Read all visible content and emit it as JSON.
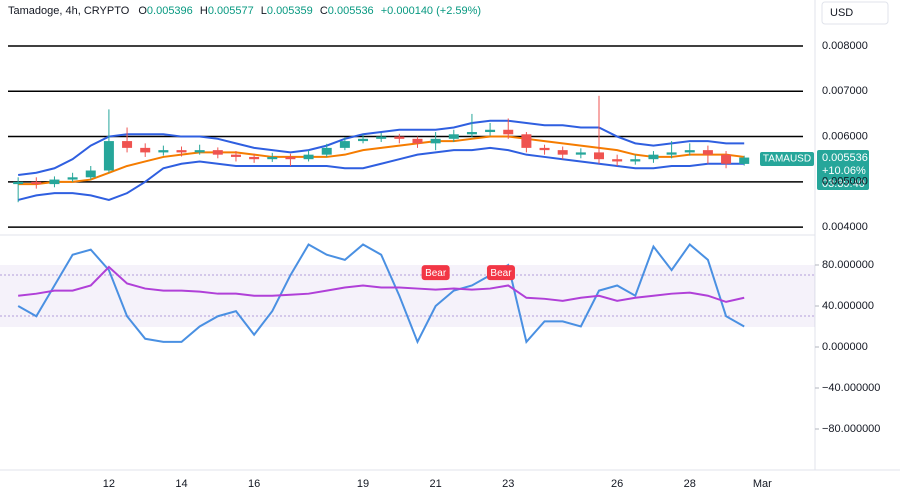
{
  "header": {
    "symbol": "Tamadoge, 4h, CRYPTO",
    "open_label": "O",
    "open": "0.005396",
    "high_label": "H",
    "high": "0.005577",
    "low_label": "L",
    "low": "0.005359",
    "close_label": "C",
    "close": "0.005536",
    "change": "+0.000140 (+2.59%)",
    "currency": "USD"
  },
  "price_tag": {
    "symbol": "TAMAUSD",
    "price": "0.005536",
    "change": "+10.06%",
    "countdown": "03:39:40"
  },
  "chart_data": [
    {
      "type": "candlestick",
      "x": [
        9.5,
        10,
        10.5,
        11,
        11.5,
        12,
        12.5,
        13,
        13.5,
        14,
        14.5,
        15,
        15.5,
        16,
        16.5,
        17,
        17.5,
        18,
        18.5,
        19,
        19.5,
        20,
        20.5,
        21,
        21.5,
        22,
        22.5,
        23,
        23.5,
        24,
        24.5,
        25,
        25.5,
        26,
        26.5,
        27,
        27.5,
        28,
        28.5,
        29,
        29.5
      ],
      "open": [
        0.00495,
        0.005,
        0.00495,
        0.00505,
        0.0051,
        0.00525,
        0.0059,
        0.00575,
        0.00565,
        0.0057,
        0.00565,
        0.0057,
        0.0056,
        0.00555,
        0.0055,
        0.00555,
        0.0055,
        0.0056,
        0.00575,
        0.0059,
        0.00595,
        0.006,
        0.00595,
        0.00585,
        0.00595,
        0.00605,
        0.0061,
        0.00615,
        0.00605,
        0.00575,
        0.0057,
        0.0056,
        0.00565,
        0.0055,
        0.00545,
        0.0055,
        0.0056,
        0.00565,
        0.0057,
        0.0056,
        0.005396
      ],
      "high": [
        0.0051,
        0.0051,
        0.00512,
        0.0052,
        0.00535,
        0.0066,
        0.0062,
        0.00585,
        0.0058,
        0.00578,
        0.00582,
        0.00576,
        0.00568,
        0.00562,
        0.00564,
        0.00562,
        0.0057,
        0.00584,
        0.00598,
        0.00605,
        0.00608,
        0.00606,
        0.006,
        0.0061,
        0.00615,
        0.0065,
        0.0063,
        0.0064,
        0.0061,
        0.00582,
        0.00578,
        0.00574,
        0.0069,
        0.0056,
        0.0056,
        0.00568,
        0.0059,
        0.00585,
        0.0058,
        0.00568,
        0.005577
      ],
      "low": [
        0.00455,
        0.00485,
        0.00488,
        0.005,
        0.00505,
        0.0052,
        0.00565,
        0.00555,
        0.00558,
        0.00556,
        0.0056,
        0.00552,
        0.00545,
        0.00542,
        0.00544,
        0.00535,
        0.00545,
        0.00555,
        0.0057,
        0.00585,
        0.00588,
        0.00585,
        0.00575,
        0.0057,
        0.00588,
        0.00598,
        0.00602,
        0.00595,
        0.00565,
        0.0056,
        0.0055,
        0.00552,
        0.0054,
        0.00535,
        0.00538,
        0.00542,
        0.00552,
        0.00558,
        0.0054,
        0.0053,
        0.005359
      ],
      "close": [
        0.005,
        0.00495,
        0.00505,
        0.0051,
        0.00525,
        0.0059,
        0.00575,
        0.00565,
        0.0057,
        0.00565,
        0.0057,
        0.0056,
        0.00555,
        0.0055,
        0.00555,
        0.0055,
        0.0056,
        0.00575,
        0.0059,
        0.00595,
        0.006,
        0.00595,
        0.00585,
        0.00595,
        0.00605,
        0.0061,
        0.00615,
        0.00605,
        0.00575,
        0.0057,
        0.0056,
        0.00565,
        0.0055,
        0.00545,
        0.0055,
        0.0056,
        0.00565,
        0.0057,
        0.0056,
        0.0054,
        0.005536
      ],
      "up_color": "#26a69a",
      "down_color": "#ef5350",
      "overlays": [
        {
          "color": "#2f5fe0",
          "values": [
            0.00515,
            0.0052,
            0.0053,
            0.0055,
            0.0058,
            0.006,
            0.00605,
            0.00605,
            0.00605,
            0.006,
            0.006,
            0.00595,
            0.00585,
            0.00575,
            0.0057,
            0.00565,
            0.0057,
            0.0058,
            0.00595,
            0.00605,
            0.0061,
            0.00615,
            0.00615,
            0.00615,
            0.0062,
            0.0063,
            0.00635,
            0.00635,
            0.0063,
            0.00625,
            0.00625,
            0.0062,
            0.0062,
            0.006,
            0.00585,
            0.0058,
            0.00585,
            0.0059,
            0.0059,
            0.00585,
            0.00585
          ]
        },
        {
          "color": "#2f5fe0",
          "values": [
            0.0046,
            0.0047,
            0.00475,
            0.00475,
            0.0047,
            0.0046,
            0.00475,
            0.005,
            0.0053,
            0.0054,
            0.00545,
            0.0054,
            0.00535,
            0.00535,
            0.00535,
            0.00535,
            0.00535,
            0.00535,
            0.0053,
            0.0053,
            0.0054,
            0.0055,
            0.0056,
            0.00565,
            0.0057,
            0.0057,
            0.00575,
            0.0057,
            0.0056,
            0.00555,
            0.0055,
            0.00545,
            0.0054,
            0.00535,
            0.0053,
            0.0053,
            0.00535,
            0.00535,
            0.0054,
            0.0054,
            0.0054
          ]
        },
        {
          "color": "#f57c00",
          "values": [
            0.00495,
            0.00495,
            0.005,
            0.005,
            0.00505,
            0.0052,
            0.00535,
            0.00545,
            0.00555,
            0.0056,
            0.00565,
            0.00565,
            0.00565,
            0.0056,
            0.00555,
            0.00555,
            0.00555,
            0.00555,
            0.0056,
            0.0057,
            0.00575,
            0.0058,
            0.00585,
            0.0059,
            0.0059,
            0.00595,
            0.006,
            0.006,
            0.00595,
            0.0059,
            0.00585,
            0.0058,
            0.00575,
            0.0057,
            0.0056,
            0.00555,
            0.00555,
            0.0056,
            0.0056,
            0.0056,
            0.00555
          ]
        }
      ],
      "levels_color": "#000000",
      "xlim": [
        9,
        31.45
      ],
      "xticks": [
        12,
        14,
        16,
        19,
        21,
        23,
        26,
        28,
        {
          "value": 30,
          "label": "Mar"
        }
      ],
      "ylim": [
        0.00387,
        0.00853
      ],
      "yticks": [
        {
          "value": 0.004,
          "label": "0.004000"
        },
        {
          "value": 0.005,
          "label": "0.005000"
        },
        {
          "value": 0.006,
          "label": "0.006000"
        },
        {
          "value": 0.007,
          "label": "0.007000"
        },
        {
          "value": 0.008,
          "label": "0.008000"
        }
      ]
    },
    {
      "type": "line",
      "x": [
        9.5,
        10,
        10.5,
        11,
        11.5,
        12,
        12.5,
        13,
        13.5,
        14,
        14.5,
        15,
        15.5,
        16,
        16.5,
        17,
        17.5,
        18,
        18.5,
        19,
        19.5,
        20,
        20.5,
        21,
        21.5,
        22,
        22.5,
        23,
        23.5,
        24,
        24.5,
        25,
        25.5,
        26,
        26.5,
        27,
        27.5,
        28,
        28.5,
        29,
        29.5
      ],
      "series": [
        {
          "color": "#4a90e2",
          "values": [
            40,
            30,
            60,
            90,
            95,
            75,
            30,
            8,
            5,
            5,
            20,
            30,
            35,
            12,
            35,
            70,
            100,
            90,
            85,
            100,
            90,
            50,
            5,
            40,
            55,
            60,
            70,
            80,
            5,
            25,
            25,
            20,
            55,
            60,
            50,
            98,
            75,
            100,
            85,
            30,
            20
          ]
        },
        {
          "color": "#b040d8",
          "values": [
            50,
            52,
            55,
            55,
            60,
            78,
            62,
            57,
            55,
            55,
            54,
            52,
            52,
            50,
            50,
            51,
            52,
            55,
            58,
            60,
            58,
            58,
            57,
            56,
            57,
            56,
            57,
            60,
            48,
            47,
            45,
            48,
            50,
            45,
            48,
            50,
            52,
            53,
            50,
            44,
            48
          ]
        }
      ],
      "annotations": [
        {
          "text": "Bear",
          "x": 21,
          "y": 72
        },
        {
          "text": "Bear",
          "x": 22.8,
          "y": 72
        }
      ],
      "ylim": [
        -120,
        107.3
      ],
      "yticks": [
        {
          "value": -80,
          "label": "−80.000000"
        },
        {
          "value": -40,
          "label": "−40.000000"
        },
        {
          "value": 0,
          "label": "0.000000"
        },
        {
          "value": 40,
          "label": "40.000000"
        },
        {
          "value": 80,
          "label": "80.000000"
        }
      ]
    }
  ]
}
